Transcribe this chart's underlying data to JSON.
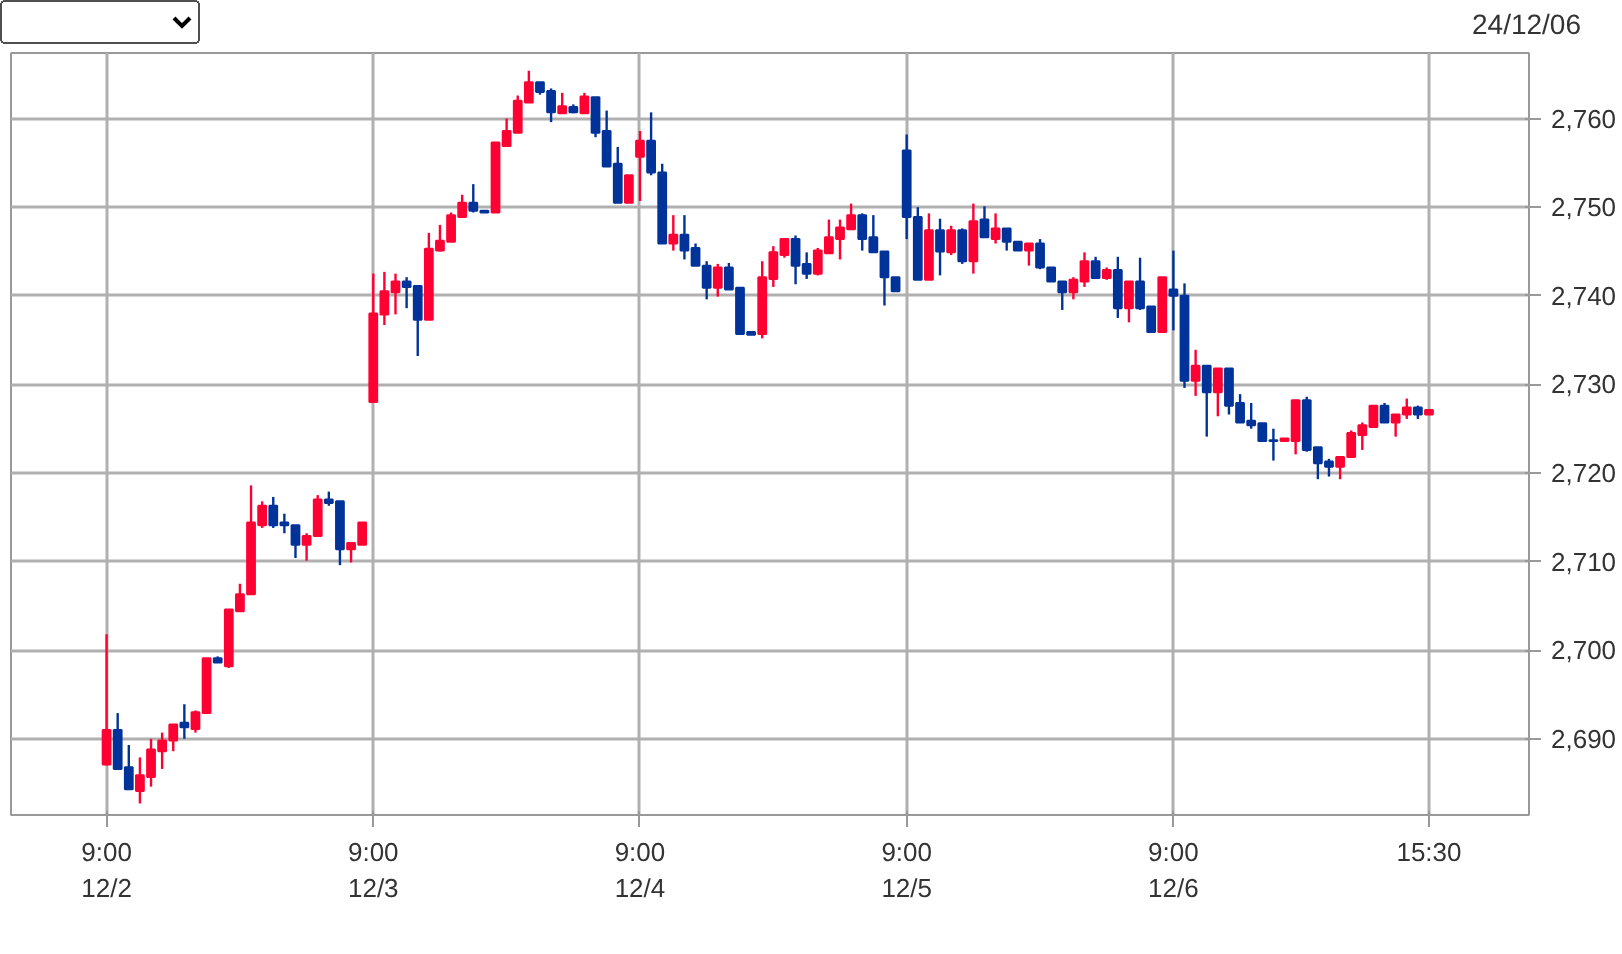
{
  "chart_data": {
    "type": "candlestick",
    "annotations": [
      "24/12/06"
    ],
    "ylim": [
      2681.4,
      2767.4
    ],
    "categories": [
      "9:00\n12/2",
      null,
      null,
      null,
      null,
      null,
      null,
      null,
      null,
      null,
      null,
      null,
      null,
      null,
      null,
      null,
      null,
      null,
      null,
      null,
      null,
      null,
      null,
      null,
      "9:00\n12/3",
      null,
      null,
      null,
      null,
      null,
      null,
      null,
      null,
      null,
      null,
      null,
      null,
      null,
      null,
      null,
      null,
      null,
      null,
      null,
      null,
      null,
      null,
      null,
      "9:00\n12/4",
      null,
      null,
      null,
      null,
      null,
      null,
      null,
      null,
      null,
      null,
      null,
      null,
      null,
      null,
      null,
      null,
      null,
      null,
      null,
      null,
      null,
      null,
      null,
      "9:00\n12/5",
      null,
      null,
      null,
      null,
      null,
      null,
      null,
      null,
      null,
      null,
      null,
      null,
      null,
      null,
      null,
      null,
      null,
      null,
      null,
      null,
      null,
      null,
      null,
      "9:00\n12/6",
      null,
      null,
      null,
      null,
      null,
      null,
      null,
      null,
      null,
      null,
      null,
      null,
      null,
      null,
      null,
      null,
      null,
      null,
      null,
      null,
      null,
      null,
      "15:30"
    ],
    "yticks": [
      {
        "value": 2690,
        "label": "2,690"
      },
      {
        "value": 2700,
        "label": "2,700"
      },
      {
        "value": 2710,
        "label": "2,710"
      },
      {
        "value": 2720,
        "label": "2,720"
      },
      {
        "value": 2730,
        "label": "2,730"
      },
      {
        "value": 2740,
        "label": "2,740"
      },
      {
        "value": 2750,
        "label": "2,750"
      },
      {
        "value": 2760,
        "label": "2,760"
      }
    ],
    "grid": true,
    "colors": [
      "#ff0033",
      "#003399",
      "#003399",
      "#ff0033",
      "#ff0033",
      "#ff0033",
      "#ff0033",
      "#003399",
      "#ff0033",
      "#ff0033",
      "#003399",
      "#ff0033",
      "#ff0033",
      "#ff0033",
      "#ff0033",
      "#003399",
      "#003399",
      "#003399",
      "#ff0033",
      "#ff0033",
      "#003399",
      "#003399",
      "#ff0033",
      "#ff0033",
      "#ff0033",
      "#ff0033",
      "#ff0033",
      "#003399",
      "#003399",
      "#ff0033",
      "#ff0033",
      "#ff0033",
      "#ff0033",
      "#003399",
      "#003399",
      "#ff0033",
      "#ff0033",
      "#ff0033",
      "#ff0033",
      "#003399",
      "#003399",
      "#ff0033",
      "#003399",
      "#ff0033",
      "#003399",
      "#003399",
      "#003399",
      "#ff0033",
      "#ff0033",
      "#003399",
      "#003399",
      "#ff0033",
      "#003399",
      "#003399",
      "#003399",
      "#ff0033",
      "#003399",
      "#003399",
      "#003399",
      "#ff0033",
      "#ff0033",
      "#ff0033",
      "#003399",
      "#003399",
      "#ff0033",
      "#ff0033",
      "#ff0033",
      "#ff0033",
      "#003399",
      "#003399",
      "#003399",
      "#003399",
      "#003399",
      "#003399",
      "#ff0033",
      "#003399",
      "#ff0033",
      "#003399",
      "#ff0033",
      "#003399",
      "#ff0033",
      "#003399",
      "#003399",
      "#ff0033",
      "#003399",
      "#003399",
      "#003399",
      "#ff0033",
      "#ff0033",
      "#003399",
      "#ff0033",
      "#003399",
      "#ff0033",
      "#003399",
      "#003399",
      "#ff0033",
      "#003399",
      "#003399",
      "#ff0033",
      "#003399",
      "#ff0033",
      "#003399",
      "#003399",
      "#003399",
      "#003399",
      "#003399",
      "#ff0033",
      "#ff0033",
      "#003399",
      "#003399",
      "#003399",
      "#ff0033",
      "#ff0033",
      "#ff0033",
      "#ff0033",
      "#003399",
      "#ff0033",
      "#ff0033",
      "#003399",
      "#ff0033"
    ],
    "ohlc": [
      [
        2687.1,
        2701.8,
        2687,
        2691
      ],
      [
        2691,
        2692.9,
        2686.6,
        2686.6
      ],
      [
        2686.8,
        2689.3,
        2684.3,
        2684.3
      ],
      [
        2684.1,
        2687.9,
        2682.7,
        2685.9
      ],
      [
        2685.7,
        2690,
        2684.6,
        2688.8
      ],
      [
        2688.6,
        2690.7,
        2686.6,
        2689.8
      ],
      [
        2689.8,
        2691.6,
        2688.6,
        2691.6
      ],
      [
        2691.8,
        2693.9,
        2690,
        2691.3
      ],
      [
        2691.1,
        2693.2,
        2690.7,
        2693
      ],
      [
        2692.9,
        2699.1,
        2692.9,
        2699.1
      ],
      [
        2699.1,
        2699.3,
        2698.6,
        2698.6
      ],
      [
        2698.2,
        2704.6,
        2698,
        2704.6
      ],
      [
        2704.4,
        2707.5,
        2704.4,
        2706.3
      ],
      [
        2706.3,
        2718.6,
        2706.3,
        2714.4
      ],
      [
        2714.1,
        2716.8,
        2713.8,
        2716.3
      ],
      [
        2716.3,
        2717.3,
        2713.8,
        2714.1
      ],
      [
        2714.4,
        2715.4,
        2713.2,
        2714.1
      ],
      [
        2714.1,
        2714.1,
        2710.4,
        2711.9
      ],
      [
        2711.9,
        2713.2,
        2710.1,
        2712.9
      ],
      [
        2712.9,
        2717.5,
        2712.9,
        2717
      ],
      [
        2717,
        2717.9,
        2716.3,
        2716.6
      ],
      [
        2716.8,
        2716.8,
        2709.6,
        2711.4
      ],
      [
        2711.4,
        2712.1,
        2709.9,
        2712.1
      ],
      [
        2711.9,
        2714.4,
        2711.9,
        2714.4
      ],
      [
        2728,
        2742.5,
        2728,
        2738
      ],
      [
        2737.9,
        2742.7,
        2736.7,
        2740.5
      ],
      [
        2740.4,
        2742.5,
        2737.9,
        2741.6
      ],
      [
        2741.6,
        2742.1,
        2738.6,
        2741
      ],
      [
        2741.1,
        2741.1,
        2733.2,
        2737.3
      ],
      [
        2737.3,
        2747.1,
        2737.3,
        2745.3
      ],
      [
        2745.1,
        2748,
        2745,
        2746.2
      ],
      [
        2746.1,
        2749.4,
        2746.1,
        2749.1
      ],
      [
        2748.9,
        2751.4,
        2748.9,
        2750.5
      ],
      [
        2750.5,
        2752.6,
        2749.4,
        2749.6
      ],
      [
        2749.6,
        2749.6,
        2749.4,
        2749.4
      ],
      [
        2749.4,
        2757.3,
        2749.4,
        2757.3
      ],
      [
        2756.9,
        2760,
        2756.8,
        2758.6
      ],
      [
        2758.4,
        2762.6,
        2758.4,
        2762
      ],
      [
        2761.8,
        2765.4,
        2761.8,
        2764.1
      ],
      [
        2764.1,
        2764.1,
        2762.7,
        2763
      ],
      [
        2763.1,
        2763.4,
        2759.6,
        2760.7
      ],
      [
        2760.6,
        2762.9,
        2760.6,
        2761.4
      ],
      [
        2761.3,
        2761.6,
        2760.6,
        2760.7
      ],
      [
        2760.6,
        2762.9,
        2760.6,
        2762.5
      ],
      [
        2762.4,
        2762.4,
        2757.9,
        2758.4
      ],
      [
        2758.6,
        2760.9,
        2754.6,
        2754.6
      ],
      [
        2754.9,
        2756.8,
        2750.5,
        2750.5
      ],
      [
        2750.5,
        2753.6,
        2750.5,
        2753.6
      ],
      [
        2755.7,
        2758.6,
        2750.7,
        2757.5
      ],
      [
        2757.5,
        2760.7,
        2753.6,
        2753.9
      ],
      [
        2753.9,
        2754.9,
        2745.9,
        2745.9
      ],
      [
        2745.9,
        2749.1,
        2745.1,
        2746.9
      ],
      [
        2746.9,
        2749.1,
        2744.1,
        2745.1
      ],
      [
        2745.4,
        2745.9,
        2743.4,
        2743.4
      ],
      [
        2743.4,
        2743.9,
        2739.6,
        2740.9
      ],
      [
        2740.9,
        2743.6,
        2739.9,
        2743.2
      ],
      [
        2743.2,
        2743.7,
        2740.7,
        2740.7
      ],
      [
        2740.9,
        2740.9,
        2735.7,
        2735.7
      ],
      [
        2735.9,
        2735.9,
        2735.6,
        2735.6
      ],
      [
        2735.7,
        2743.9,
        2735.2,
        2742.1
      ],
      [
        2741.9,
        2745.6,
        2741,
        2744.9
      ],
      [
        2744.6,
        2746.4,
        2744.3,
        2746.4
      ],
      [
        2746.4,
        2746.8,
        2741.3,
        2743.4
      ],
      [
        2743.6,
        2744.9,
        2741.9,
        2742.5
      ],
      [
        2742.5,
        2745.4,
        2742.3,
        2745.1
      ],
      [
        2744.8,
        2748.6,
        2744.8,
        2746.6
      ],
      [
        2746.4,
        2748.6,
        2744.1,
        2747.7
      ],
      [
        2747.5,
        2750.4,
        2747.5,
        2749.1
      ],
      [
        2749.1,
        2749.3,
        2745.1,
        2746.4
      ],
      [
        2746.6,
        2749.1,
        2744.9,
        2744.9
      ],
      [
        2745,
        2745,
        2738.9,
        2742.1
      ],
      [
        2742.1,
        2742.1,
        2740.5,
        2740.5
      ],
      [
        2756.4,
        2758.2,
        2746.4,
        2748.9
      ],
      [
        2748.9,
        2750,
        2741.8,
        2741.8
      ],
      [
        2741.8,
        2749.3,
        2741.8,
        2747.4
      ],
      [
        2747.4,
        2748.7,
        2742.3,
        2745
      ],
      [
        2744.9,
        2747.9,
        2744.6,
        2747.4
      ],
      [
        2747.4,
        2747.6,
        2743.6,
        2743.9
      ],
      [
        2743.9,
        2750.4,
        2742.5,
        2748.4
      ],
      [
        2748.6,
        2750.1,
        2746.6,
        2746.6
      ],
      [
        2746.4,
        2749.3,
        2745.9,
        2747.6
      ],
      [
        2747.6,
        2747.6,
        2745.1,
        2746.1
      ],
      [
        2746.1,
        2746.1,
        2745.1,
        2745.1
      ],
      [
        2745.1,
        2745.9,
        2743.4,
        2745.9
      ],
      [
        2745.9,
        2746.4,
        2743,
        2743.2
      ],
      [
        2743.2,
        2743.2,
        2741.6,
        2741.6
      ],
      [
        2741.6,
        2741.6,
        2738.4,
        2740.4
      ],
      [
        2740.4,
        2742.1,
        2739.6,
        2741.8
      ],
      [
        2741.6,
        2744.9,
        2741,
        2743.9
      ],
      [
        2743.9,
        2744.4,
        2742,
        2742
      ],
      [
        2742,
        2743.2,
        2741.8,
        2742.9
      ],
      [
        2742.9,
        2744.4,
        2737.5,
        2738.6
      ],
      [
        2738.6,
        2741.6,
        2737,
        2741.6
      ],
      [
        2741.6,
        2744.3,
        2738.4,
        2738.6
      ],
      [
        2738.8,
        2738.8,
        2735.9,
        2735.9
      ],
      [
        2735.9,
        2742.1,
        2735.9,
        2742.1
      ],
      [
        2740.7,
        2745.1,
        2736.1,
        2740
      ],
      [
        2740,
        2741.4,
        2729.6,
        2730.4
      ],
      [
        2730.4,
        2733.9,
        2728.7,
        2732.1
      ],
      [
        2732.1,
        2732.1,
        2724.1,
        2729.1
      ],
      [
        2729.1,
        2731.8,
        2726.4,
        2731.8
      ],
      [
        2731.8,
        2731.8,
        2726.6,
        2727.6
      ],
      [
        2727.9,
        2728.9,
        2725.7,
        2725.7
      ],
      [
        2725.9,
        2727.9,
        2725,
        2725.4
      ],
      [
        2725.6,
        2725.6,
        2723.6,
        2723.6
      ],
      [
        2723.7,
        2725,
        2721.4,
        2723.6
      ],
      [
        2723.6,
        2723.9,
        2723.6,
        2723.9
      ],
      [
        2723.6,
        2728.2,
        2722.1,
        2728.2
      ],
      [
        2728.2,
        2728.6,
        2722.4,
        2722.6
      ],
      [
        2722.9,
        2722.9,
        2719.3,
        2721.1
      ],
      [
        2721.3,
        2721.6,
        2719.6,
        2720.7
      ],
      [
        2720.7,
        2721.8,
        2719.3,
        2721.8
      ],
      [
        2721.8,
        2724.8,
        2721.8,
        2724.5
      ],
      [
        2724.3,
        2725.7,
        2722.6,
        2725.4
      ],
      [
        2725.2,
        2727.6,
        2725.2,
        2727.6
      ],
      [
        2727.6,
        2727.9,
        2725.7,
        2725.7
      ],
      [
        2725.7,
        2726.6,
        2724.1,
        2726.6
      ],
      [
        2726.6,
        2728.4,
        2726.1,
        2727.4
      ],
      [
        2727.4,
        2727.6,
        2726.1,
        2726.6
      ],
      [
        2726.6,
        2727.1,
        2726.6,
        2727.1
      ]
    ]
  }
}
